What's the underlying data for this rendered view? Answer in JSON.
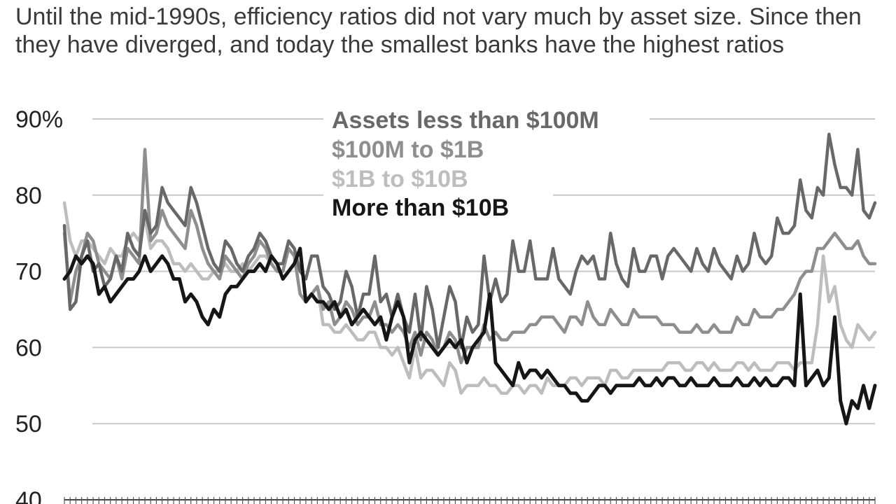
{
  "subtitle": "Until the mid-1990s, efficiency ratios did not vary much by asset size. Since then they have diverged, and today the smallest banks have the highest ratios",
  "colors": {
    "series_lt100m": "#686868",
    "series_100m_1b": "#8e8e8e",
    "series_1b_10b": "#bdbdbd",
    "series_gt10b": "#161616",
    "grid": "#c8c8c8",
    "text": "#222222"
  },
  "chart_data": {
    "type": "line",
    "title": "",
    "xlabel": "",
    "ylabel": "",
    "ylim": [
      40,
      90
    ],
    "yticks": [
      90,
      80,
      70,
      60,
      50,
      40
    ],
    "ytick_labels": [
      "90%",
      "80",
      "70",
      "60",
      "50",
      "40"
    ],
    "grid": true,
    "legend_position": "top-center",
    "x_note": "Quarterly observations; x-axis tick labels are cropped out of view",
    "series": [
      {
        "name": "Assets less than $100M",
        "values": [
          76,
          65,
          66,
          72,
          74,
          70,
          71,
          68,
          69,
          72,
          70,
          75,
          73,
          72,
          78,
          75,
          76,
          81,
          79,
          78,
          77,
          76,
          81,
          79,
          76,
          73,
          71,
          70,
          74,
          73,
          71,
          70,
          72,
          73,
          75,
          74,
          72,
          71,
          71,
          74,
          73,
          70,
          69,
          72,
          72,
          68,
          67,
          65,
          66,
          70,
          68,
          64,
          67,
          67,
          72,
          66,
          67,
          64,
          67,
          64,
          62,
          67,
          61,
          68,
          65,
          60,
          64,
          68,
          66,
          60,
          64,
          62,
          63,
          72,
          66,
          69,
          66,
          67,
          74,
          70,
          70,
          74,
          69,
          69,
          69,
          73,
          69,
          68,
          67,
          70,
          72,
          71,
          72,
          69,
          69,
          75,
          71,
          69,
          68,
          73,
          70,
          70,
          72,
          72,
          69,
          72,
          73,
          72,
          71,
          70,
          73,
          71,
          70,
          73,
          71,
          70,
          69,
          72,
          70,
          71,
          75,
          72,
          71,
          72,
          77,
          75,
          75,
          76,
          82,
          78,
          77,
          81,
          80,
          88,
          84,
          81,
          81,
          80,
          86,
          78,
          77,
          79
        ]
      },
      {
        "name": "$100M to $1B",
        "values": [
          75,
          66,
          70,
          72,
          75,
          74,
          71,
          70,
          69,
          72,
          69,
          73,
          72,
          71,
          86,
          74,
          75,
          78,
          76,
          75,
          74,
          73,
          78,
          76,
          73,
          71,
          70,
          69,
          72,
          71,
          70,
          69,
          71,
          72,
          74,
          73,
          71,
          70,
          70,
          73,
          72,
          67,
          66,
          67,
          68,
          65,
          66,
          63,
          64,
          66,
          65,
          63,
          64,
          64,
          66,
          63,
          63,
          62,
          63,
          62,
          60,
          62,
          59,
          62,
          61,
          59,
          60,
          62,
          61,
          58,
          60,
          60,
          60,
          63,
          61,
          62,
          61,
          61,
          62,
          62,
          62,
          63,
          63,
          64,
          64,
          64,
          63,
          62,
          64,
          64,
          63,
          66,
          64,
          63,
          63,
          65,
          64,
          63,
          63,
          65,
          64,
          64,
          64,
          64,
          63,
          63,
          63,
          62,
          62,
          62,
          63,
          62,
          62,
          63,
          62,
          62,
          62,
          64,
          63,
          63,
          65,
          64,
          64,
          64,
          65,
          65,
          66,
          67,
          69,
          70,
          70,
          73,
          73,
          74,
          75,
          74,
          73,
          73,
          74,
          72,
          71,
          71
        ]
      },
      {
        "name": "$1B to $10B",
        "values": [
          79,
          74,
          72,
          74,
          74,
          73,
          72,
          71,
          73,
          72,
          72,
          74,
          75,
          74,
          77,
          73,
          74,
          74,
          73,
          71,
          71,
          70,
          71,
          70,
          69,
          69,
          70,
          70,
          71,
          70,
          70,
          71,
          70,
          71,
          72,
          72,
          71,
          70,
          70,
          73,
          72,
          67,
          66,
          67,
          68,
          63,
          63,
          62,
          62,
          63,
          62,
          61,
          61,
          62,
          62,
          60,
          60,
          59,
          60,
          58,
          56,
          60,
          56,
          57,
          57,
          56,
          55,
          58,
          57,
          54,
          55,
          55,
          55,
          56,
          55,
          55,
          54,
          54,
          55,
          55,
          54,
          55,
          55,
          54,
          56,
          55,
          55,
          55,
          56,
          56,
          55,
          56,
          56,
          56,
          55,
          57,
          57,
          56,
          56,
          57,
          57,
          57,
          57,
          57,
          57,
          58,
          58,
          58,
          57,
          57,
          58,
          58,
          57,
          58,
          57,
          57,
          57,
          58,
          58,
          57,
          58,
          57,
          57,
          57,
          58,
          58,
          58,
          57,
          58,
          58,
          58,
          63,
          72,
          66,
          68,
          63,
          61,
          60,
          63,
          62,
          61,
          62
        ]
      },
      {
        "name": "More than $10B",
        "values": [
          69,
          70,
          72,
          71,
          72,
          71,
          67,
          68,
          66,
          67,
          68,
          69,
          69,
          70,
          72,
          70,
          71,
          72,
          71,
          69,
          69,
          66,
          67,
          66,
          64,
          63,
          65,
          64,
          67,
          68,
          68,
          69,
          70,
          70,
          71,
          70,
          72,
          71,
          69,
          70,
          71,
          73,
          66,
          67,
          66,
          66,
          65,
          66,
          64,
          65,
          63,
          64,
          65,
          64,
          63,
          64,
          61,
          64,
          66,
          64,
          58,
          61,
          62,
          61,
          60,
          59,
          60,
          61,
          60,
          61,
          58,
          60,
          61,
          62,
          67,
          58,
          57,
          56,
          55,
          58,
          56,
          57,
          57,
          56,
          57,
          56,
          55,
          55,
          54,
          54,
          53,
          53,
          54,
          55,
          55,
          54,
          55,
          55,
          55,
          55,
          56,
          55,
          55,
          56,
          55,
          56,
          56,
          55,
          55,
          56,
          55,
          55,
          55,
          56,
          55,
          55,
          55,
          56,
          55,
          55,
          56,
          55,
          56,
          55,
          55,
          56,
          56,
          55,
          67,
          55,
          56,
          57,
          55,
          56,
          64,
          53,
          50,
          53,
          52,
          55,
          52,
          55
        ]
      }
    ]
  }
}
